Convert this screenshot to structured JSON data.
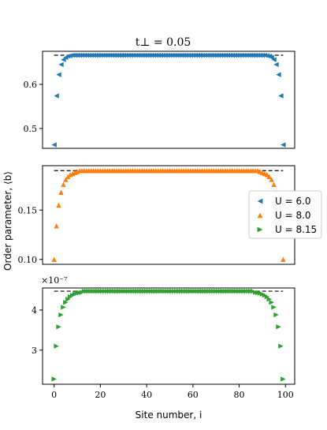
{
  "figure": {
    "title": "t⊥ = 0.05",
    "ylabel": "Order parameter, ⟨b⟩",
    "xlabel": "Site number, i",
    "legend": [
      "U = 6.0",
      "U = 8.0",
      "U = 8.15"
    ],
    "offset_label": "×10⁻⁷"
  },
  "chart_data": [
    {
      "type": "scatter",
      "panel": "top",
      "title": "t⊥ = 0.05",
      "xlim": [
        -5,
        104
      ],
      "ylim": [
        0.455,
        0.675
      ],
      "yticks": [
        0.5,
        0.6
      ],
      "ytick_labels": [
        "0.5",
        "0.6"
      ],
      "dashed_reference": 0.666,
      "series": [
        {
          "name": "U = 6.0",
          "color": "#1f77b4",
          "marker": "triangle-left",
          "x_start": 0,
          "x_end": 99,
          "plateau": 0.666,
          "edge_values": [
            0.463,
            0.574,
            0.622,
            0.645,
            0.656,
            0.661,
            0.664,
            0.665
          ]
        }
      ]
    },
    {
      "type": "scatter",
      "panel": "middle",
      "xlim": [
        -5,
        104
      ],
      "ylim": [
        0.095,
        0.195
      ],
      "yticks": [
        0.1,
        0.15
      ],
      "ytick_labels": [
        "0.10",
        "0.15"
      ],
      "dashed_reference": 0.19,
      "series": [
        {
          "name": "U = 8.0",
          "color": "#ff7f0e",
          "marker": "triangle-up",
          "x_start": 0,
          "x_end": 99,
          "plateau": 0.19,
          "edge_values": [
            0.1,
            0.134,
            0.155,
            0.168,
            0.176,
            0.181,
            0.184,
            0.186,
            0.187,
            0.188,
            0.189
          ]
        }
      ]
    },
    {
      "type": "scatter",
      "panel": "bottom",
      "xlim": [
        -5,
        104
      ],
      "xticks": [
        0,
        20,
        40,
        60,
        80,
        100
      ],
      "xtick_labels": [
        "0",
        "20",
        "40",
        "60",
        "80",
        "100"
      ],
      "ylim": [
        2.15,
        4.55
      ],
      "yticks": [
        3,
        4
      ],
      "ytick_labels": [
        "3",
        "4"
      ],
      "y_multiplier": "×10⁻⁷",
      "dashed_reference": 4.47,
      "series": [
        {
          "name": "U = 8.15",
          "color": "#2ca02c",
          "marker": "triangle-right",
          "x_start": 0,
          "x_end": 99,
          "plateau": 4.47,
          "edge_values": [
            2.28,
            3.1,
            3.58,
            3.88,
            4.07,
            4.19,
            4.27,
            4.33,
            4.37,
            4.4,
            4.42,
            4.43,
            4.44
          ]
        }
      ]
    }
  ]
}
